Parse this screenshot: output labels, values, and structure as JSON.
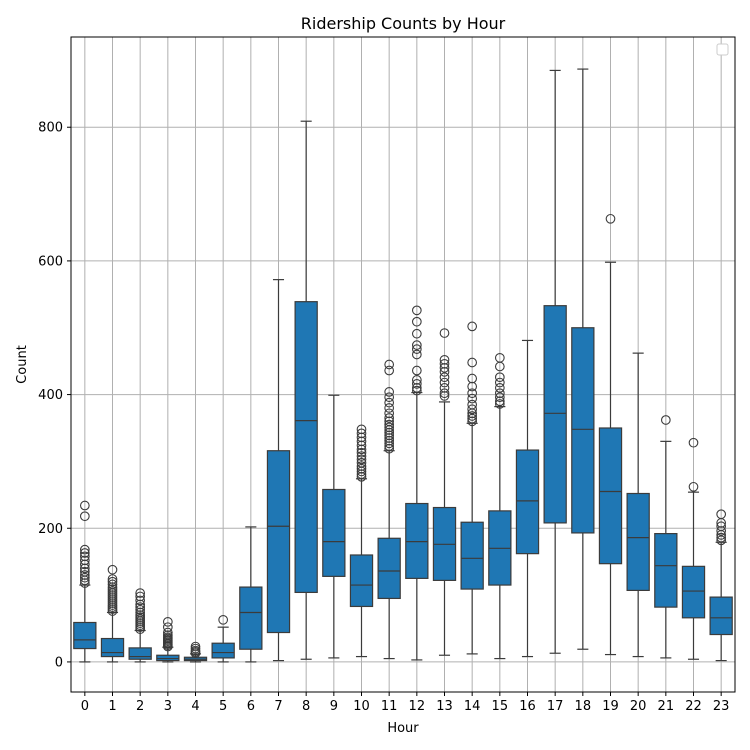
{
  "chart_data": {
    "type": "box",
    "title": "Ridership Counts by Hour",
    "xlabel": "Hour",
    "ylabel": "Count",
    "ylim": [
      -45,
      935
    ],
    "yticks": [
      0,
      200,
      400,
      600,
      800
    ],
    "grid": true,
    "legend": "top-right (empty)",
    "color": "#1f77b4",
    "categories": [
      "0",
      "1",
      "2",
      "3",
      "4",
      "5",
      "6",
      "7",
      "8",
      "9",
      "10",
      "11",
      "12",
      "13",
      "14",
      "15",
      "16",
      "17",
      "18",
      "19",
      "20",
      "21",
      "22",
      "23"
    ],
    "boxes": [
      {
        "hour": "0",
        "whislo": 0,
        "q1": 20,
        "med": 33,
        "q3": 59,
        "whishi": 115,
        "fliers": [
          118,
          122,
          126,
          130,
          135,
          140,
          146,
          152,
          158,
          163,
          168,
          218,
          234
        ]
      },
      {
        "hour": "1",
        "whislo": 0,
        "q1": 8,
        "med": 14,
        "q3": 35,
        "whishi": 74,
        "fliers": [
          76,
          79,
          82,
          85,
          88,
          91,
          94,
          97,
          100,
          103,
          106,
          109,
          112,
          116,
          120,
          124,
          138
        ]
      },
      {
        "hour": "2",
        "whislo": 0,
        "q1": 4,
        "med": 8,
        "q3": 21,
        "whishi": 47,
        "fliers": [
          49,
          52,
          55,
          58,
          61,
          64,
          67,
          70,
          74,
          78,
          82,
          86,
          92,
          98,
          103
        ]
      },
      {
        "hour": "3",
        "whislo": 0,
        "q1": 2,
        "med": 5,
        "q3": 10,
        "whishi": 22,
        "fliers": [
          23,
          25,
          27,
          29,
          31,
          33,
          35,
          37,
          40,
          44,
          52,
          60
        ]
      },
      {
        "hour": "4",
        "whislo": 0,
        "q1": 2,
        "med": 4,
        "q3": 7,
        "whishi": 12,
        "fliers": [
          13,
          15,
          17,
          20,
          23
        ]
      },
      {
        "hour": "5",
        "whislo": 0,
        "q1": 6,
        "med": 14,
        "q3": 28,
        "whishi": 52,
        "fliers": [
          63
        ]
      },
      {
        "hour": "6",
        "whislo": 0,
        "q1": 19,
        "med": 74,
        "q3": 112,
        "whishi": 202,
        "fliers": []
      },
      {
        "hour": "7",
        "whislo": 2,
        "q1": 44,
        "med": 203,
        "q3": 316,
        "whishi": 572,
        "fliers": []
      },
      {
        "hour": "8",
        "whislo": 4,
        "q1": 104,
        "med": 361,
        "q3": 539,
        "whishi": 809,
        "fliers": []
      },
      {
        "hour": "9",
        "whislo": 6,
        "q1": 128,
        "med": 180,
        "q3": 258,
        "whishi": 399,
        "fliers": []
      },
      {
        "hour": "10",
        "whislo": 8,
        "q1": 83,
        "med": 115,
        "q3": 160,
        "whishi": 274,
        "fliers": [
          277,
          281,
          285,
          289,
          293,
          298,
          303,
          308,
          313,
          318,
          324,
          330,
          336,
          342,
          348
        ]
      },
      {
        "hour": "11",
        "whislo": 5,
        "q1": 95,
        "med": 136,
        "q3": 185,
        "whishi": 316,
        "fliers": [
          319,
          323,
          327,
          331,
          335,
          339,
          343,
          347,
          351,
          355,
          360,
          365,
          372,
          380,
          388,
          396,
          404,
          436,
          445
        ]
      },
      {
        "hour": "12",
        "whislo": 3,
        "q1": 125,
        "med": 180,
        "q3": 237,
        "whishi": 403,
        "fliers": [
          406,
          410,
          416,
          422,
          436,
          460,
          468,
          474,
          491,
          509,
          526
        ]
      },
      {
        "hour": "13",
        "whislo": 10,
        "q1": 122,
        "med": 176,
        "q3": 231,
        "whishi": 389,
        "fliers": [
          398,
          402,
          410,
          418,
          426,
          434,
          440,
          446,
          452,
          492
        ]
      },
      {
        "hour": "14",
        "whislo": 12,
        "q1": 109,
        "med": 155,
        "q3": 209,
        "whishi": 357,
        "fliers": [
          360,
          364,
          368,
          372,
          378,
          385,
          394,
          402,
          412,
          424,
          448,
          502
        ]
      },
      {
        "hour": "15",
        "whislo": 5,
        "q1": 115,
        "med": 170,
        "q3": 226,
        "whishi": 382,
        "fliers": [
          386,
          390,
          396,
          402,
          410,
          418,
          426,
          442,
          455
        ]
      },
      {
        "hour": "16",
        "whislo": 8,
        "q1": 162,
        "med": 241,
        "q3": 317,
        "whishi": 481,
        "fliers": []
      },
      {
        "hour": "17",
        "whislo": 13,
        "q1": 208,
        "med": 372,
        "q3": 533,
        "whishi": 885,
        "fliers": []
      },
      {
        "hour": "18",
        "whislo": 19,
        "q1": 193,
        "med": 348,
        "q3": 500,
        "whishi": 887,
        "fliers": []
      },
      {
        "hour": "19",
        "whislo": 11,
        "q1": 147,
        "med": 255,
        "q3": 350,
        "whishi": 598,
        "fliers": [
          663
        ]
      },
      {
        "hour": "20",
        "whislo": 8,
        "q1": 107,
        "med": 186,
        "q3": 252,
        "whishi": 462,
        "fliers": []
      },
      {
        "hour": "21",
        "whislo": 6,
        "q1": 82,
        "med": 144,
        "q3": 192,
        "whishi": 330,
        "fliers": [
          362
        ]
      },
      {
        "hour": "22",
        "whislo": 4,
        "q1": 66,
        "med": 106,
        "q3": 143,
        "whishi": 254,
        "fliers": [
          262,
          328
        ]
      },
      {
        "hour": "23",
        "whislo": 2,
        "q1": 41,
        "med": 66,
        "q3": 97,
        "whishi": 179,
        "fliers": [
          182,
          186,
          190,
          196,
          203,
          208,
          221
        ]
      }
    ]
  }
}
